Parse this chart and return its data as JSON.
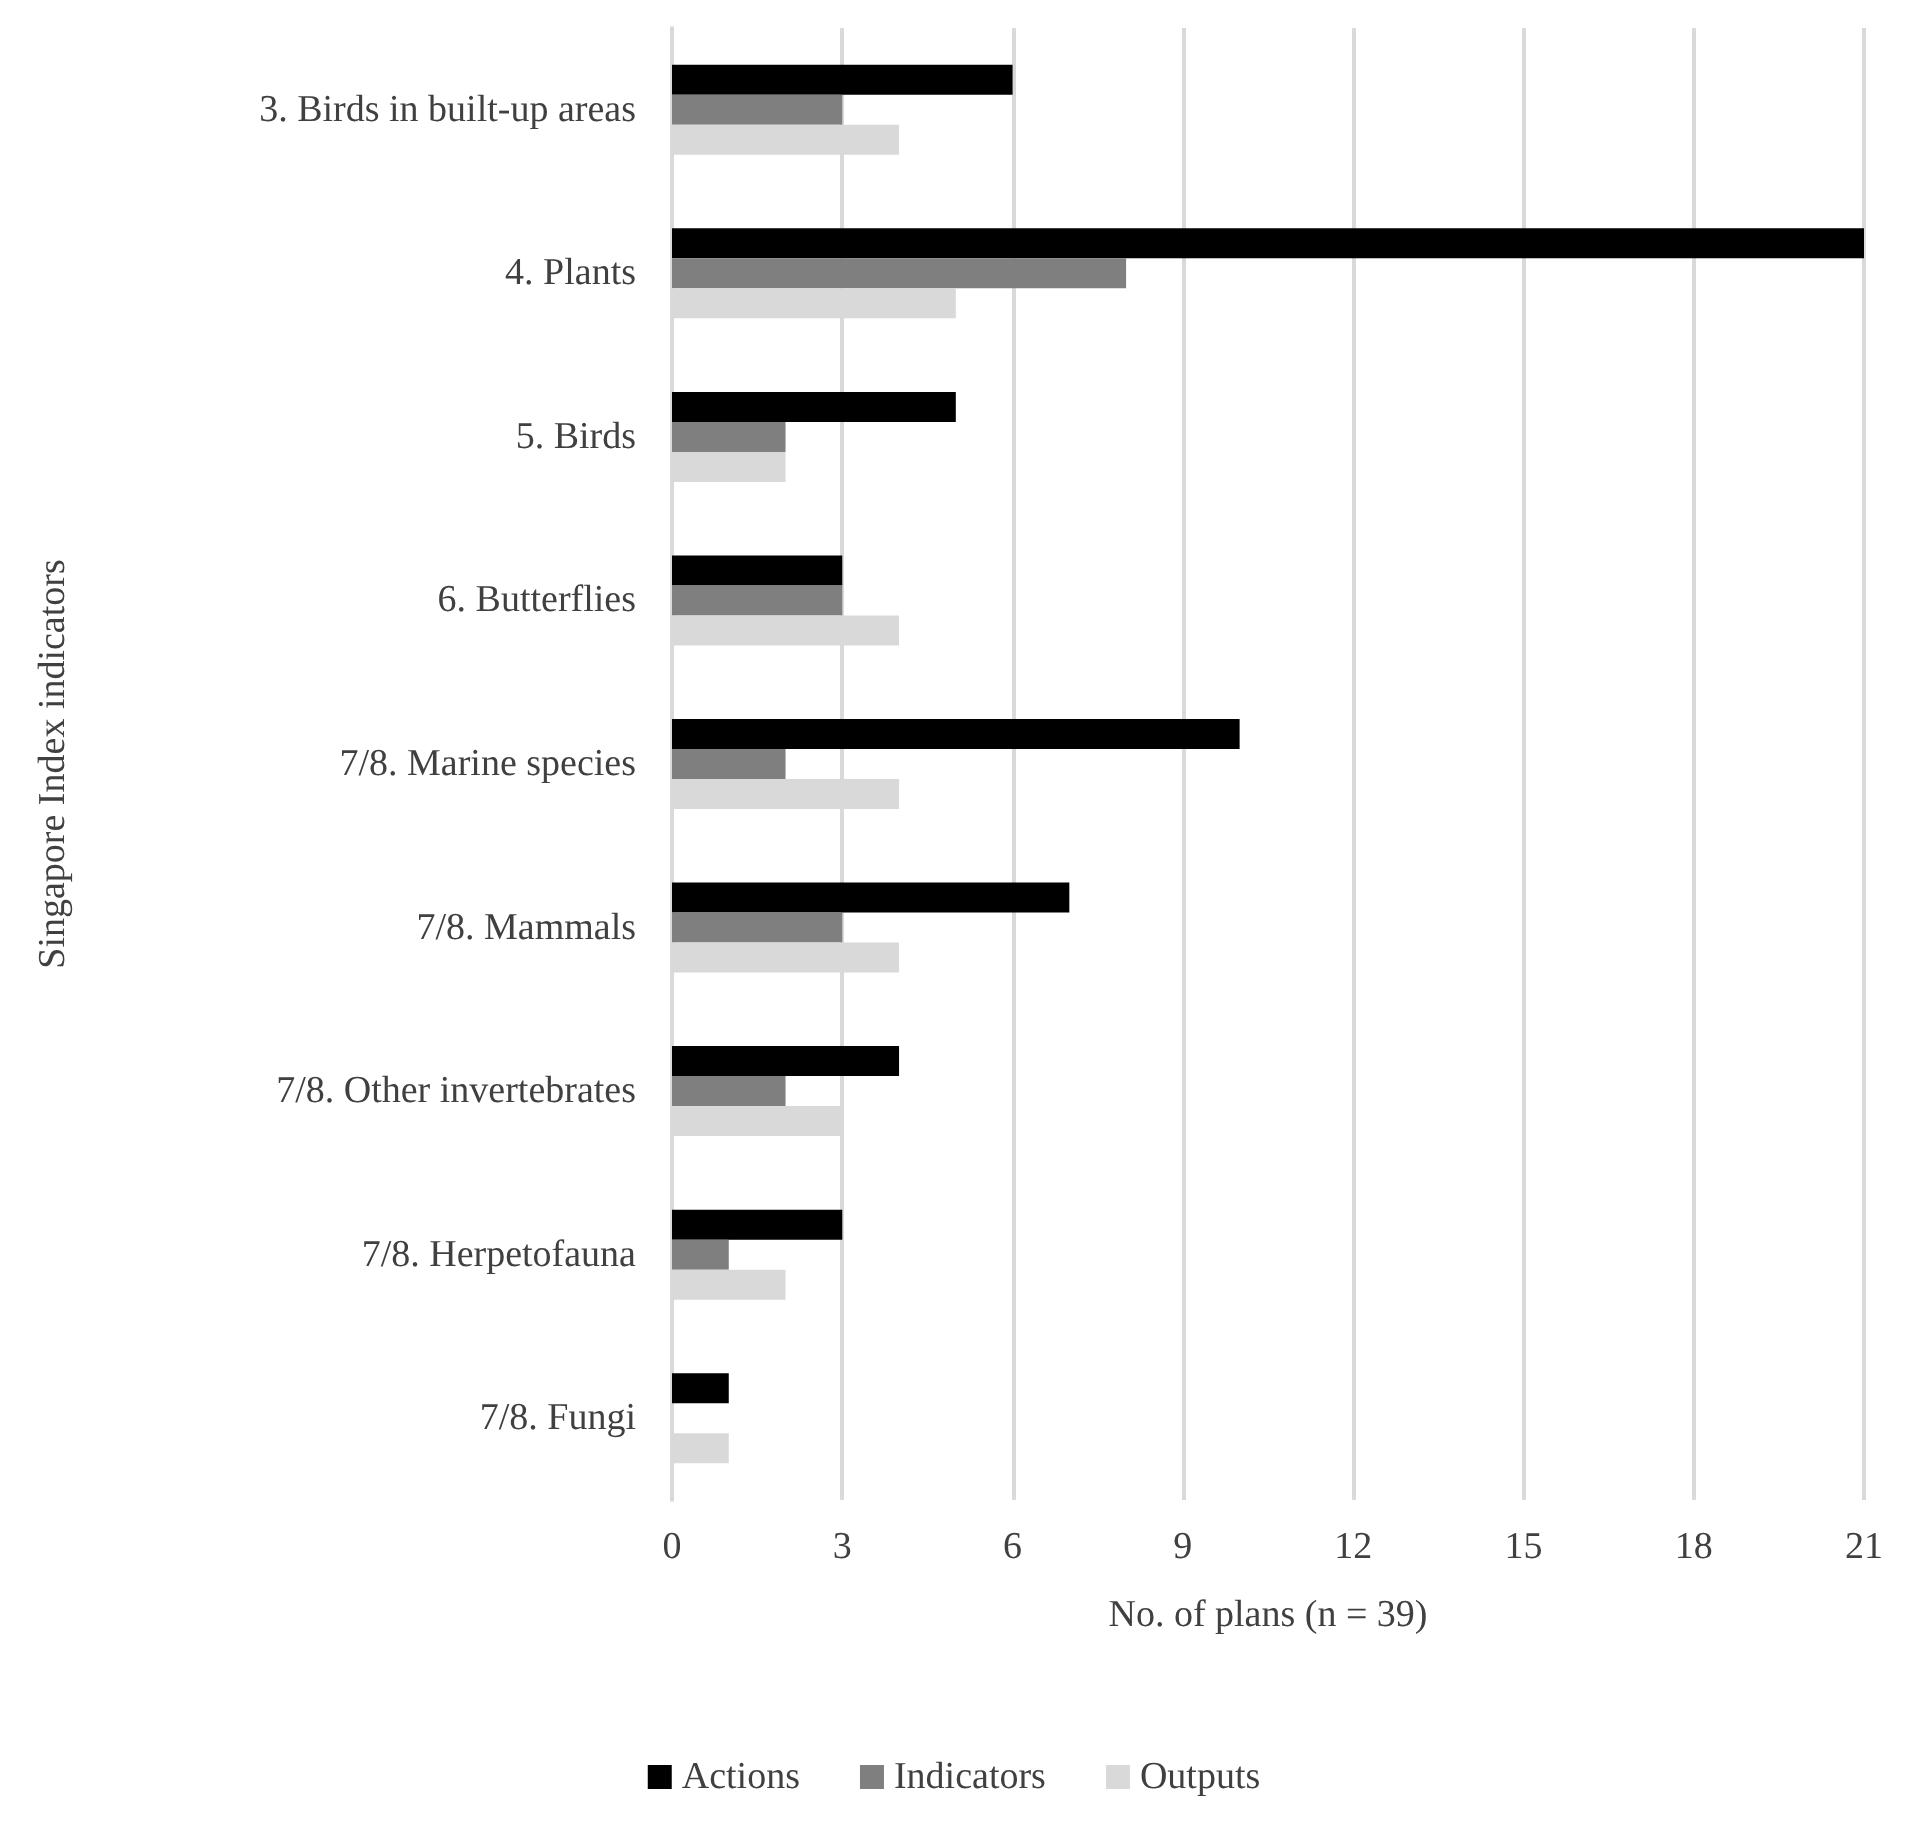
{
  "chart_data": {
    "type": "bar",
    "orientation": "horizontal",
    "xlabel": "No. of plans (n = 39)",
    "ylabel": "Singapore Index indicators",
    "categories": [
      "3. Birds in built-up areas",
      "4. Plants",
      "5. Birds",
      "6. Butterflies",
      "7/8. Marine species",
      "7/8. Mammals",
      "7/8. Other invertebrates",
      "7/8. Herpetofauna",
      "7/8. Fungi"
    ],
    "series": [
      {
        "name": "Actions",
        "color": "#000000",
        "values": [
          6,
          21,
          5,
          3,
          10,
          7,
          4,
          3,
          1
        ]
      },
      {
        "name": "Indicators",
        "color": "#7f7f7f",
        "values": [
          3,
          8,
          2,
          3,
          2,
          3,
          2,
          1,
          0
        ]
      },
      {
        "name": "Outputs",
        "color": "#d9d9d9",
        "values": [
          4,
          5,
          2,
          4,
          4,
          4,
          3,
          2,
          1
        ]
      }
    ],
    "xlim": [
      0,
      21
    ],
    "xticks": [
      0,
      3,
      6,
      9,
      12,
      15,
      18,
      21
    ],
    "grid": "x",
    "legend": "bottom"
  }
}
